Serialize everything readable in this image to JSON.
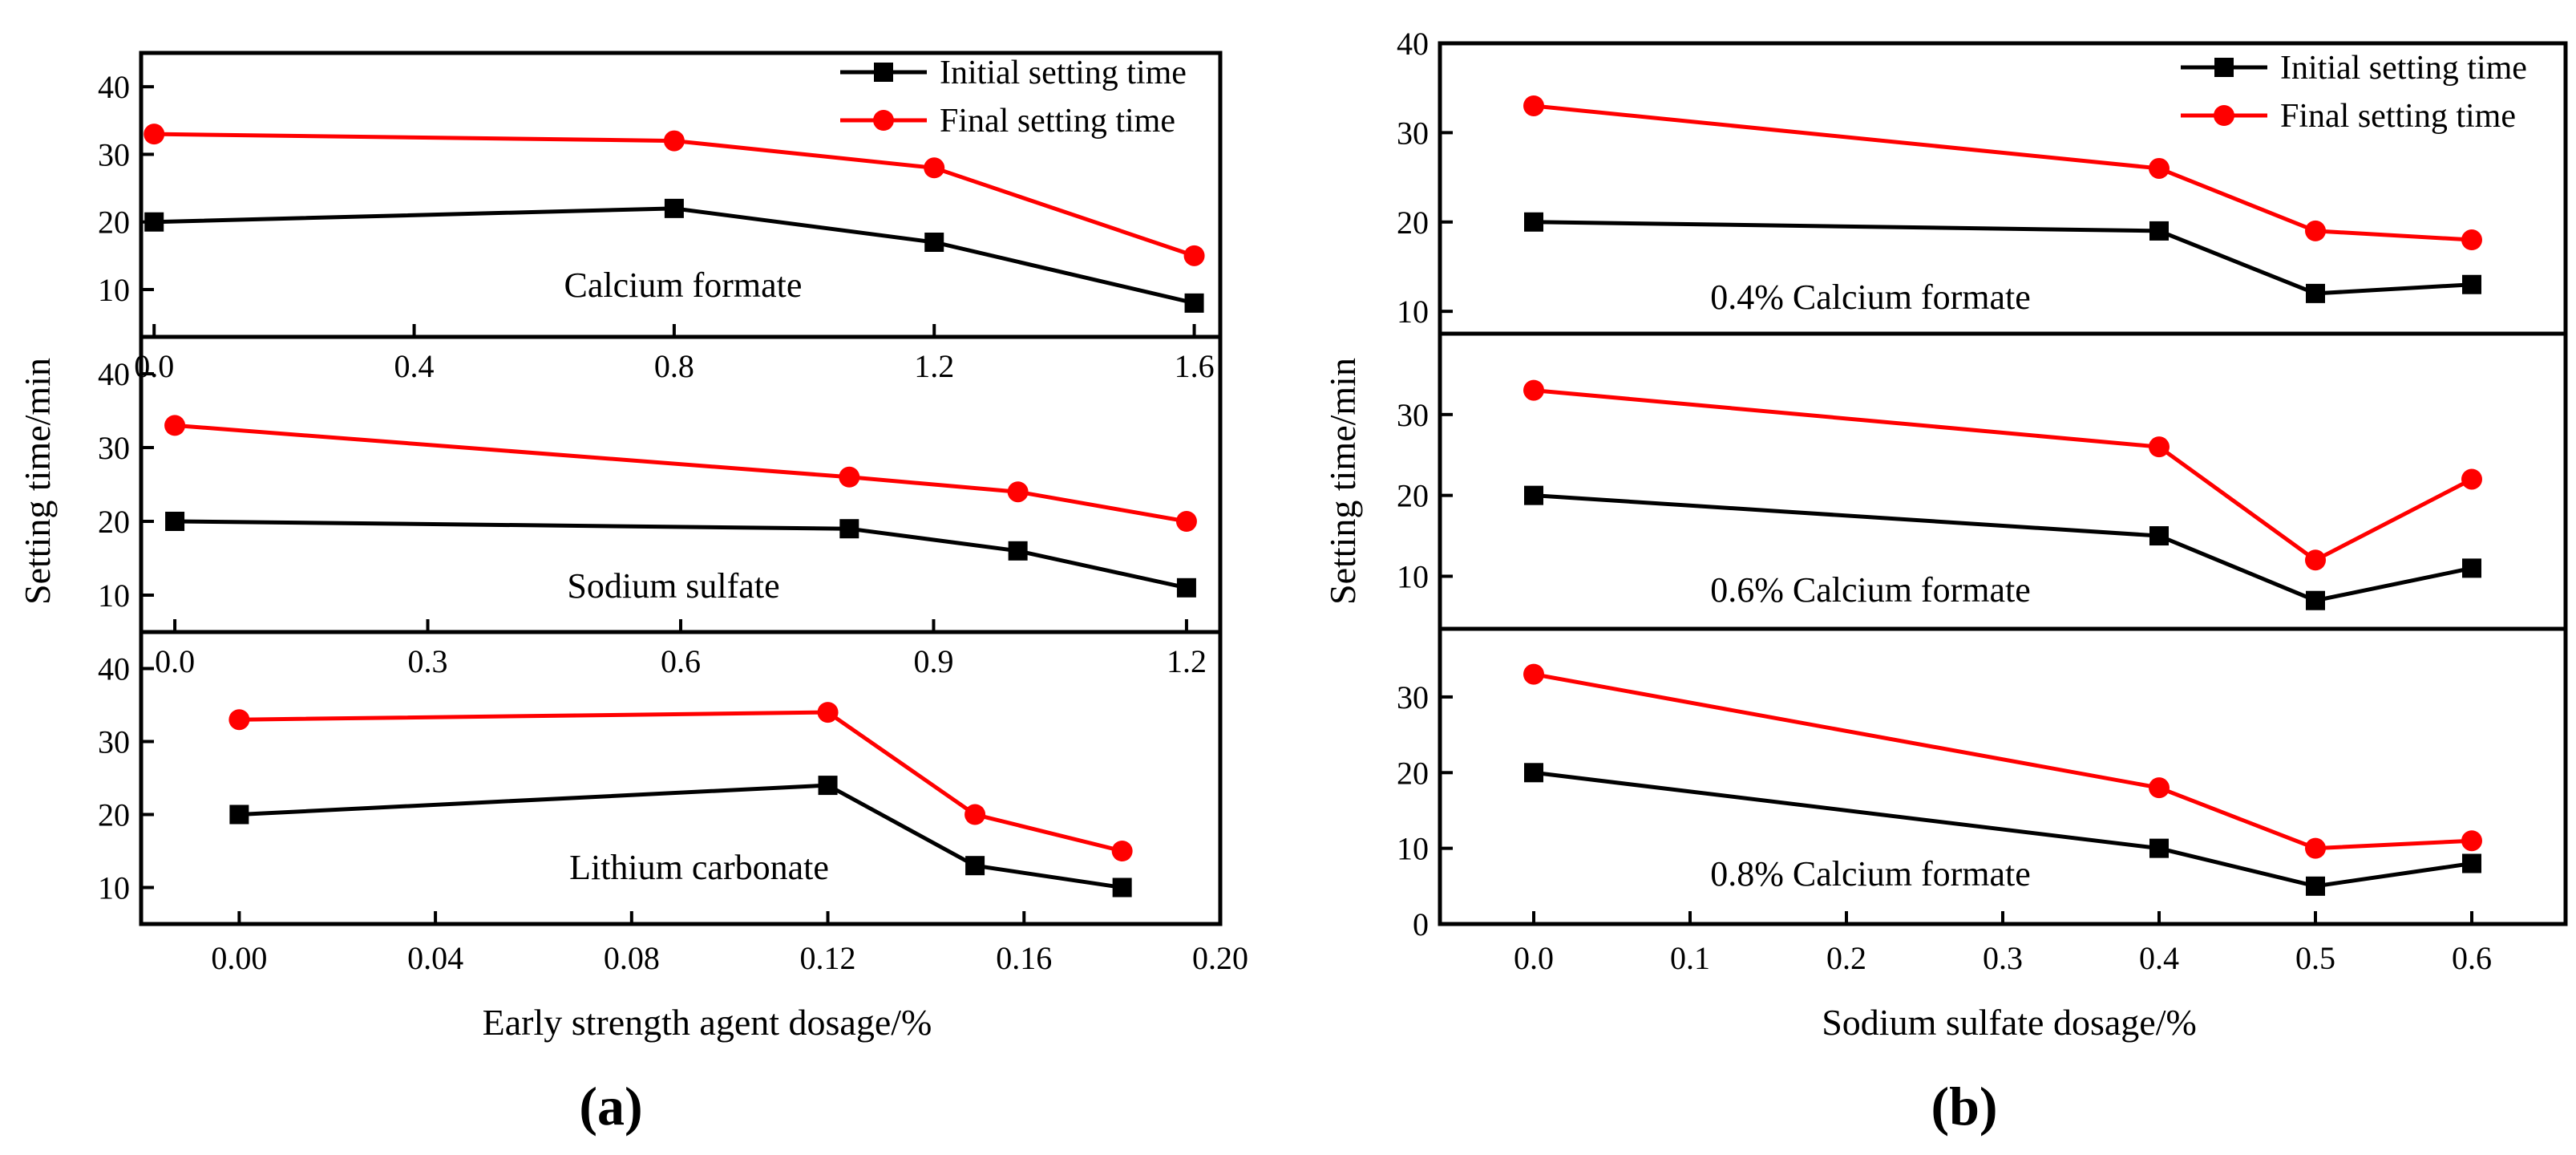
{
  "chart_data": [
    {
      "id": "a",
      "type": "line",
      "panel_label": "(a)",
      "xlabel": "Early strength agent dosage/%",
      "ylabel": "Setting time/min",
      "subplots": [
        {
          "annotation": "Calcium formate",
          "x": [
            0.0,
            0.8,
            1.2,
            1.6
          ],
          "xlim": [
            -0.02,
            1.64
          ],
          "xticks": [
            0.0,
            0.4,
            0.8,
            1.2,
            1.6
          ],
          "xtick_labels": [
            "0.0",
            "0.4",
            "0.8",
            "1.2",
            "1.6"
          ],
          "ylim": [
            3,
            45
          ],
          "yticks": [
            10,
            20,
            30,
            40
          ],
          "ytick_labels": [
            "10",
            "20",
            "30",
            "40"
          ],
          "legend": true,
          "series": [
            {
              "name": "Initial setting time",
              "color": "#000000",
              "marker": "square",
              "values": [
                20,
                22,
                17,
                8
              ]
            },
            {
              "name": "Final setting time",
              "color": "#ff0000",
              "marker": "circle",
              "values": [
                33,
                32,
                28,
                15
              ]
            }
          ]
        },
        {
          "annotation": "Sodium sulfate",
          "x": [
            0.0,
            0.8,
            1.0,
            1.2
          ],
          "xlim": [
            -0.04,
            1.24
          ],
          "xticks": [
            0.0,
            0.3,
            0.6,
            0.9,
            1.2
          ],
          "xtick_labels": [
            "0.0",
            "0.3",
            "0.6",
            "0.9",
            "1.2"
          ],
          "ylim": [
            5,
            45
          ],
          "yticks": [
            10,
            20,
            30,
            40
          ],
          "ytick_labels": [
            "10",
            "20",
            "30",
            "40"
          ],
          "legend": false,
          "series": [
            {
              "name": "Initial setting time",
              "color": "#000000",
              "marker": "square",
              "values": [
                20,
                19,
                16,
                11
              ]
            },
            {
              "name": "Final setting time",
              "color": "#ff0000",
              "marker": "circle",
              "values": [
                33,
                26,
                24,
                20
              ]
            }
          ]
        },
        {
          "annotation": "Lithium carbonate",
          "x": [
            0.0,
            0.12,
            0.15,
            0.18
          ],
          "xlim": [
            -0.02,
            0.2
          ],
          "xticks": [
            0.0,
            0.04,
            0.08,
            0.12,
            0.16,
            0.2
          ],
          "xtick_labels": [
            "0.00",
            "0.04",
            "0.08",
            "0.12",
            "0.16",
            "0.20"
          ],
          "ylim": [
            5,
            45
          ],
          "yticks": [
            10,
            20,
            30,
            40
          ],
          "ytick_labels": [
            "10",
            "20",
            "30",
            "40"
          ],
          "legend": false,
          "series": [
            {
              "name": "Initial setting time",
              "color": "#000000",
              "marker": "square",
              "values": [
                20,
                24,
                13,
                10
              ]
            },
            {
              "name": "Final setting time",
              "color": "#ff0000",
              "marker": "circle",
              "values": [
                33,
                34,
                20,
                15
              ]
            }
          ]
        }
      ]
    },
    {
      "id": "b",
      "type": "line",
      "panel_label": "(b)",
      "xlabel": "Sodium sulfate dosage/%",
      "ylabel": "Setting time/min",
      "shared_x": [
        0.0,
        0.4,
        0.5,
        0.6
      ],
      "xlim": [
        -0.06,
        0.66
      ],
      "xticks": [
        0.0,
        0.1,
        0.2,
        0.3,
        0.4,
        0.5,
        0.6
      ],
      "xtick_labels": [
        "0.0",
        "0.1",
        "0.2",
        "0.3",
        "0.4",
        "0.5",
        "0.6"
      ],
      "subplots": [
        {
          "annotation": "0.4% Calcium formate",
          "ylim": [
            7.5,
            40
          ],
          "yticks": [
            10,
            20,
            30,
            40
          ],
          "ytick_labels": [
            "10",
            "20",
            "30",
            "40"
          ],
          "legend": true,
          "series": [
            {
              "name": "Initial setting time",
              "color": "#000000",
              "marker": "square",
              "values": [
                20,
                19,
                12,
                13
              ]
            },
            {
              "name": "Final setting time",
              "color": "#ff0000",
              "marker": "circle",
              "values": [
                33,
                26,
                19,
                18
              ]
            }
          ]
        },
        {
          "annotation": "0.6% Calcium formate",
          "ylim": [
            3.5,
            40
          ],
          "yticks": [
            10,
            20,
            30
          ],
          "ytick_labels": [
            "10",
            "20",
            "30"
          ],
          "legend": false,
          "series": [
            {
              "name": "Initial setting time",
              "color": "#000000",
              "marker": "square",
              "values": [
                20,
                15,
                7,
                11
              ]
            },
            {
              "name": "Final setting time",
              "color": "#ff0000",
              "marker": "circle",
              "values": [
                33,
                26,
                12,
                22
              ]
            }
          ]
        },
        {
          "annotation": "0.8% Calcium formate",
          "ylim": [
            0,
            39
          ],
          "yticks": [
            0,
            10,
            20,
            30
          ],
          "ytick_labels": [
            "0",
            "10",
            "20",
            "30"
          ],
          "legend": false,
          "series": [
            {
              "name": "Initial setting time",
              "color": "#000000",
              "marker": "square",
              "values": [
                20,
                10,
                5,
                8
              ]
            },
            {
              "name": "Final setting time",
              "color": "#ff0000",
              "marker": "circle",
              "values": [
                33,
                18,
                10,
                11
              ]
            }
          ]
        }
      ]
    }
  ]
}
